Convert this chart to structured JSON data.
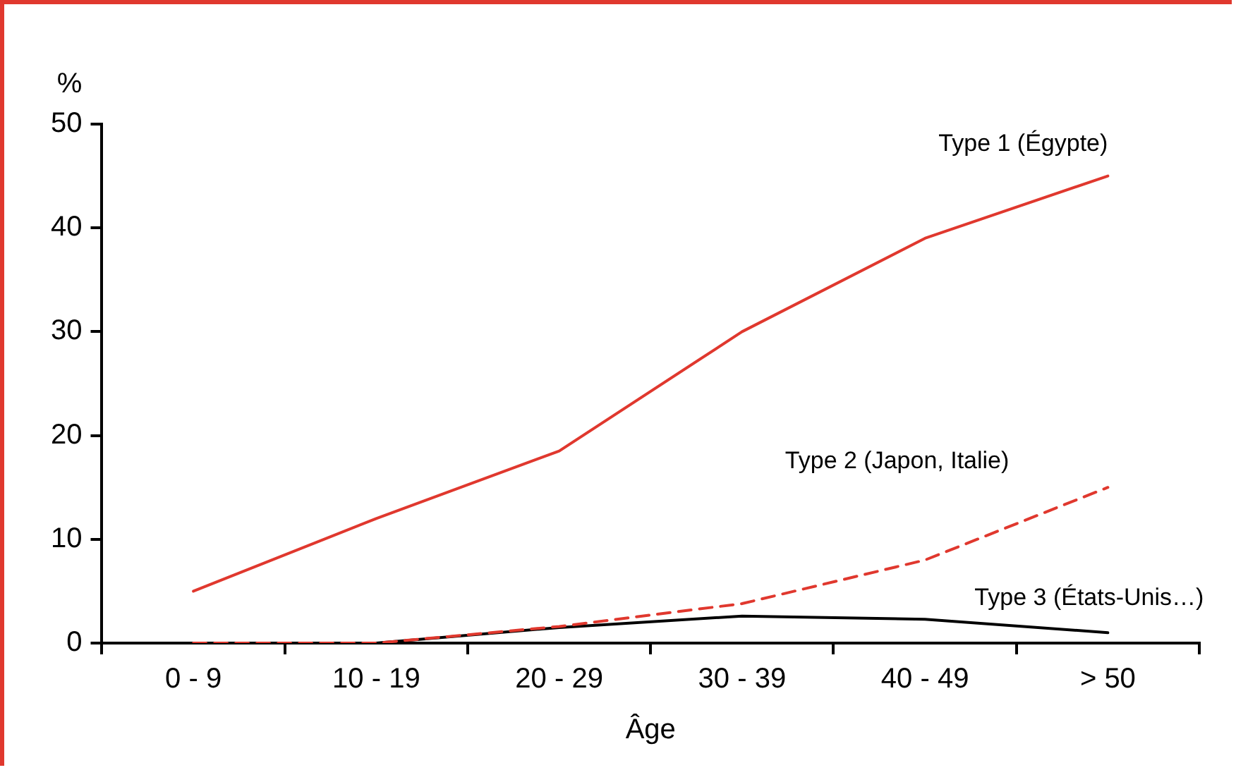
{
  "chart_data": {
    "type": "line",
    "ylabel": "%",
    "xlabel": "Âge",
    "categories": [
      "0 - 9",
      "10 - 19",
      "20 - 29",
      "30 - 39",
      "40 - 49",
      "> 50"
    ],
    "series": [
      {
        "name": "Type 1 (Égypte)",
        "color": "#e0382e",
        "line_style": "solid",
        "values": [
          5,
          12,
          18.5,
          30,
          39,
          45
        ]
      },
      {
        "name": "Type 2 (Japon, Italie)",
        "color": "#e0382e",
        "line_style": "dashed",
        "values": [
          0,
          0,
          1.6,
          3.8,
          8,
          15
        ]
      },
      {
        "name": "Type 3 (États-Unis…)",
        "color": "#000000",
        "line_style": "solid",
        "values": [
          0,
          0,
          1.5,
          2.6,
          2.3,
          1
        ]
      }
    ],
    "ylim": [
      0,
      50
    ],
    "yticks": [
      0,
      10,
      20,
      30,
      40,
      50
    ],
    "grid": false,
    "legend": false,
    "marker": "none"
  }
}
